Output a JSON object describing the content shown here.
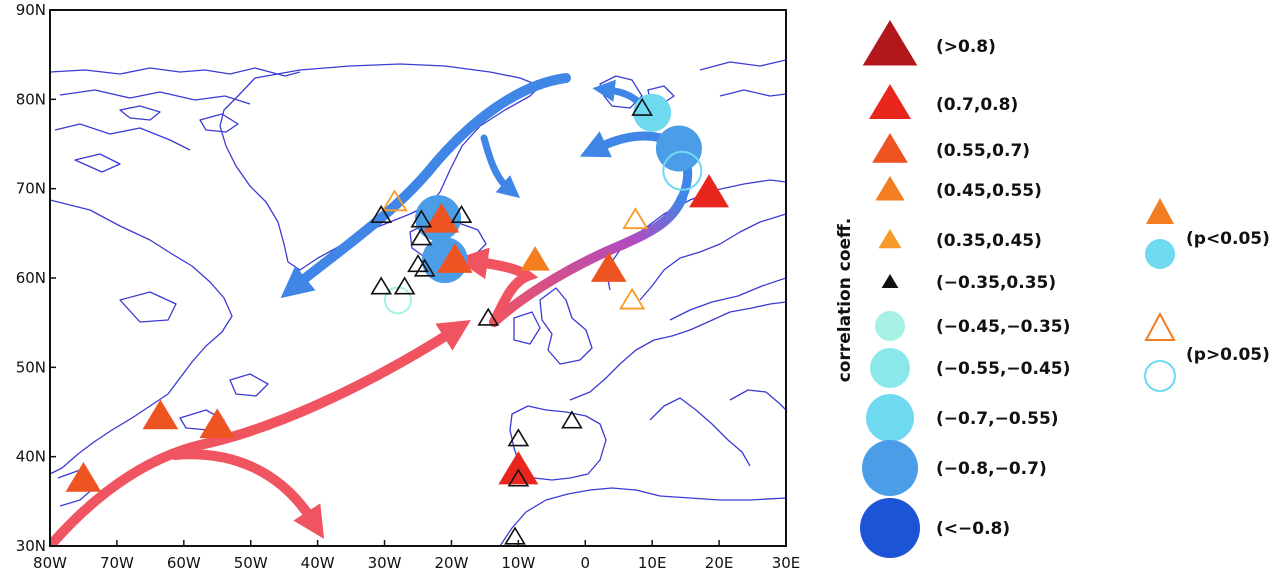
{
  "map": {
    "lat_labels": [
      "30N",
      "40N",
      "50N",
      "60N",
      "70N",
      "80N",
      "90N"
    ],
    "lon_labels": [
      "80W",
      "70W",
      "60W",
      "50W",
      "40W",
      "30W",
      "20W",
      "10W",
      "0",
      "10E",
      "20E",
      "30E"
    ],
    "extent": {
      "lon": [
        -80,
        30
      ],
      "lat": [
        30,
        90
      ]
    },
    "sites": [
      {
        "lon": -75,
        "lat": 37.5,
        "kind": "tri",
        "cat": "0.55-0.7",
        "sig": true
      },
      {
        "lon": -63.5,
        "lat": 44.5,
        "kind": "tri",
        "cat": "0.55-0.7",
        "sig": true
      },
      {
        "lon": -55,
        "lat": 43.5,
        "kind": "tri",
        "cat": "0.55-0.7",
        "sig": true
      },
      {
        "lon": -22,
        "lat": 66.7,
        "kind": "circ",
        "cat": "-0.8--0.7",
        "sig": true
      },
      {
        "lon": -21,
        "lat": 62,
        "kind": "circ",
        "cat": "-0.8--0.7",
        "sig": true
      },
      {
        "lon": -21.5,
        "lat": 66.5,
        "kind": "tri",
        "cat": "0.55-0.7",
        "sig": true
      },
      {
        "lon": -19.5,
        "lat": 62,
        "kind": "tri",
        "cat": "0.55-0.7",
        "sig": true
      },
      {
        "lon": -7.5,
        "lat": 62,
        "kind": "tri",
        "cat": "0.45-0.55",
        "sig": true
      },
      {
        "lon": 3.5,
        "lat": 61,
        "kind": "tri",
        "cat": "0.55-0.7",
        "sig": true
      },
      {
        "lon": 18.5,
        "lat": 69.5,
        "kind": "tri",
        "cat": "0.7-0.8",
        "sig": true
      },
      {
        "lon": -10,
        "lat": 38.5,
        "kind": "tri",
        "cat": "0.7-0.8",
        "sig": true
      },
      {
        "lon": 10,
        "lat": 78.5,
        "kind": "circ",
        "cat": "-0.7--0.55",
        "sig": true
      },
      {
        "lon": 14,
        "lat": 74.5,
        "kind": "circ",
        "cat": "-0.8--0.7",
        "sig": true
      },
      {
        "lon": 14.5,
        "lat": 72,
        "kind": "circ",
        "cat": "-0.7--0.55",
        "sig": false
      },
      {
        "lon": -28,
        "lat": 57.5,
        "kind": "circ",
        "cat": "-0.45--0.35",
        "sig": false
      },
      {
        "lon": -28.5,
        "lat": 68.5,
        "kind": "tri",
        "cat": "0.35-0.45",
        "sig": false
      },
      {
        "lon": 7.5,
        "lat": 66.5,
        "kind": "tri",
        "cat": "0.35-0.45",
        "sig": false
      },
      {
        "lon": 7,
        "lat": 57.5,
        "kind": "tri",
        "cat": "0.35-0.45",
        "sig": false
      },
      {
        "lon": 8.5,
        "lat": 79,
        "kind": "tri",
        "cat": "-0.35-0.35",
        "sig": false
      },
      {
        "lon": -30.5,
        "lat": 67,
        "kind": "tri",
        "cat": "-0.35-0.35",
        "sig": false
      },
      {
        "lon": -24.5,
        "lat": 66.5,
        "kind": "tri",
        "cat": "-0.35-0.35",
        "sig": false
      },
      {
        "lon": -18.5,
        "lat": 67,
        "kind": "tri",
        "cat": "-0.35-0.35",
        "sig": false
      },
      {
        "lon": -24.5,
        "lat": 64.5,
        "kind": "tri",
        "cat": "-0.35-0.35",
        "sig": false
      },
      {
        "lon": -25,
        "lat": 61.5,
        "kind": "tri",
        "cat": "-0.35-0.35",
        "sig": false
      },
      {
        "lon": -24,
        "lat": 61,
        "kind": "tri",
        "cat": "-0.35-0.35",
        "sig": false
      },
      {
        "lon": -30.5,
        "lat": 59,
        "kind": "tri",
        "cat": "-0.35-0.35",
        "sig": false
      },
      {
        "lon": -27,
        "lat": 59,
        "kind": "tri",
        "cat": "-0.35-0.35",
        "sig": false
      },
      {
        "lon": -14.5,
        "lat": 55.5,
        "kind": "tri",
        "cat": "-0.35-0.35",
        "sig": false
      },
      {
        "lon": -2,
        "lat": 44,
        "kind": "tri",
        "cat": "-0.35-0.35",
        "sig": false
      },
      {
        "lon": -10,
        "lat": 42,
        "kind": "tri",
        "cat": "-0.35-0.35",
        "sig": false
      },
      {
        "lon": -10,
        "lat": 37.5,
        "kind": "tri",
        "cat": "-0.35-0.35",
        "sig": false
      },
      {
        "lon": -10.5,
        "lat": 31,
        "kind": "tri",
        "cat": "-0.35-0.35",
        "sig": false
      }
    ]
  },
  "legend": {
    "title": "correlation coeff.",
    "items": [
      {
        "label": "(>0.8)",
        "kind": "tri",
        "color": "#b2181b",
        "size": 26
      },
      {
        "label": "(0.7,0.8)",
        "kind": "tri",
        "color": "#e8261d",
        "size": 20
      },
      {
        "label": "(0.55,0.7)",
        "kind": "tri",
        "color": "#ee5422",
        "size": 17
      },
      {
        "label": "(0.45,0.55)",
        "kind": "tri",
        "color": "#f47d20",
        "size": 14
      },
      {
        "label": "(0.35,0.45)",
        "kind": "tri",
        "color": "#f79a2a",
        "size": 11
      },
      {
        "label": "(−0.35,0.35)",
        "kind": "tri",
        "color": "#111111",
        "size": 8
      },
      {
        "label": "(−0.45,−0.35)",
        "kind": "circ",
        "color": "#a6f0e6",
        "size": 15
      },
      {
        "label": "(−0.55,−0.45)",
        "kind": "circ",
        "color": "#8be8ea",
        "size": 20
      },
      {
        "label": "(−0.7,−0.55)",
        "kind": "circ",
        "color": "#6fd9f0",
        "size": 24
      },
      {
        "label": "(−0.8,−0.7)",
        "kind": "circ",
        "color": "#4a9de6",
        "size": 28
      },
      {
        "label": "(<−0.8)",
        "kind": "circ",
        "color": "#1c54d6",
        "size": 30
      }
    ],
    "sig_label": "(p<0.05)",
    "nonsig_label": "(p>0.05)"
  },
  "colors": {
    "warm_current": "#f05460",
    "cold_current": "#3f86e6",
    "coast": "#3b3bd4"
  }
}
